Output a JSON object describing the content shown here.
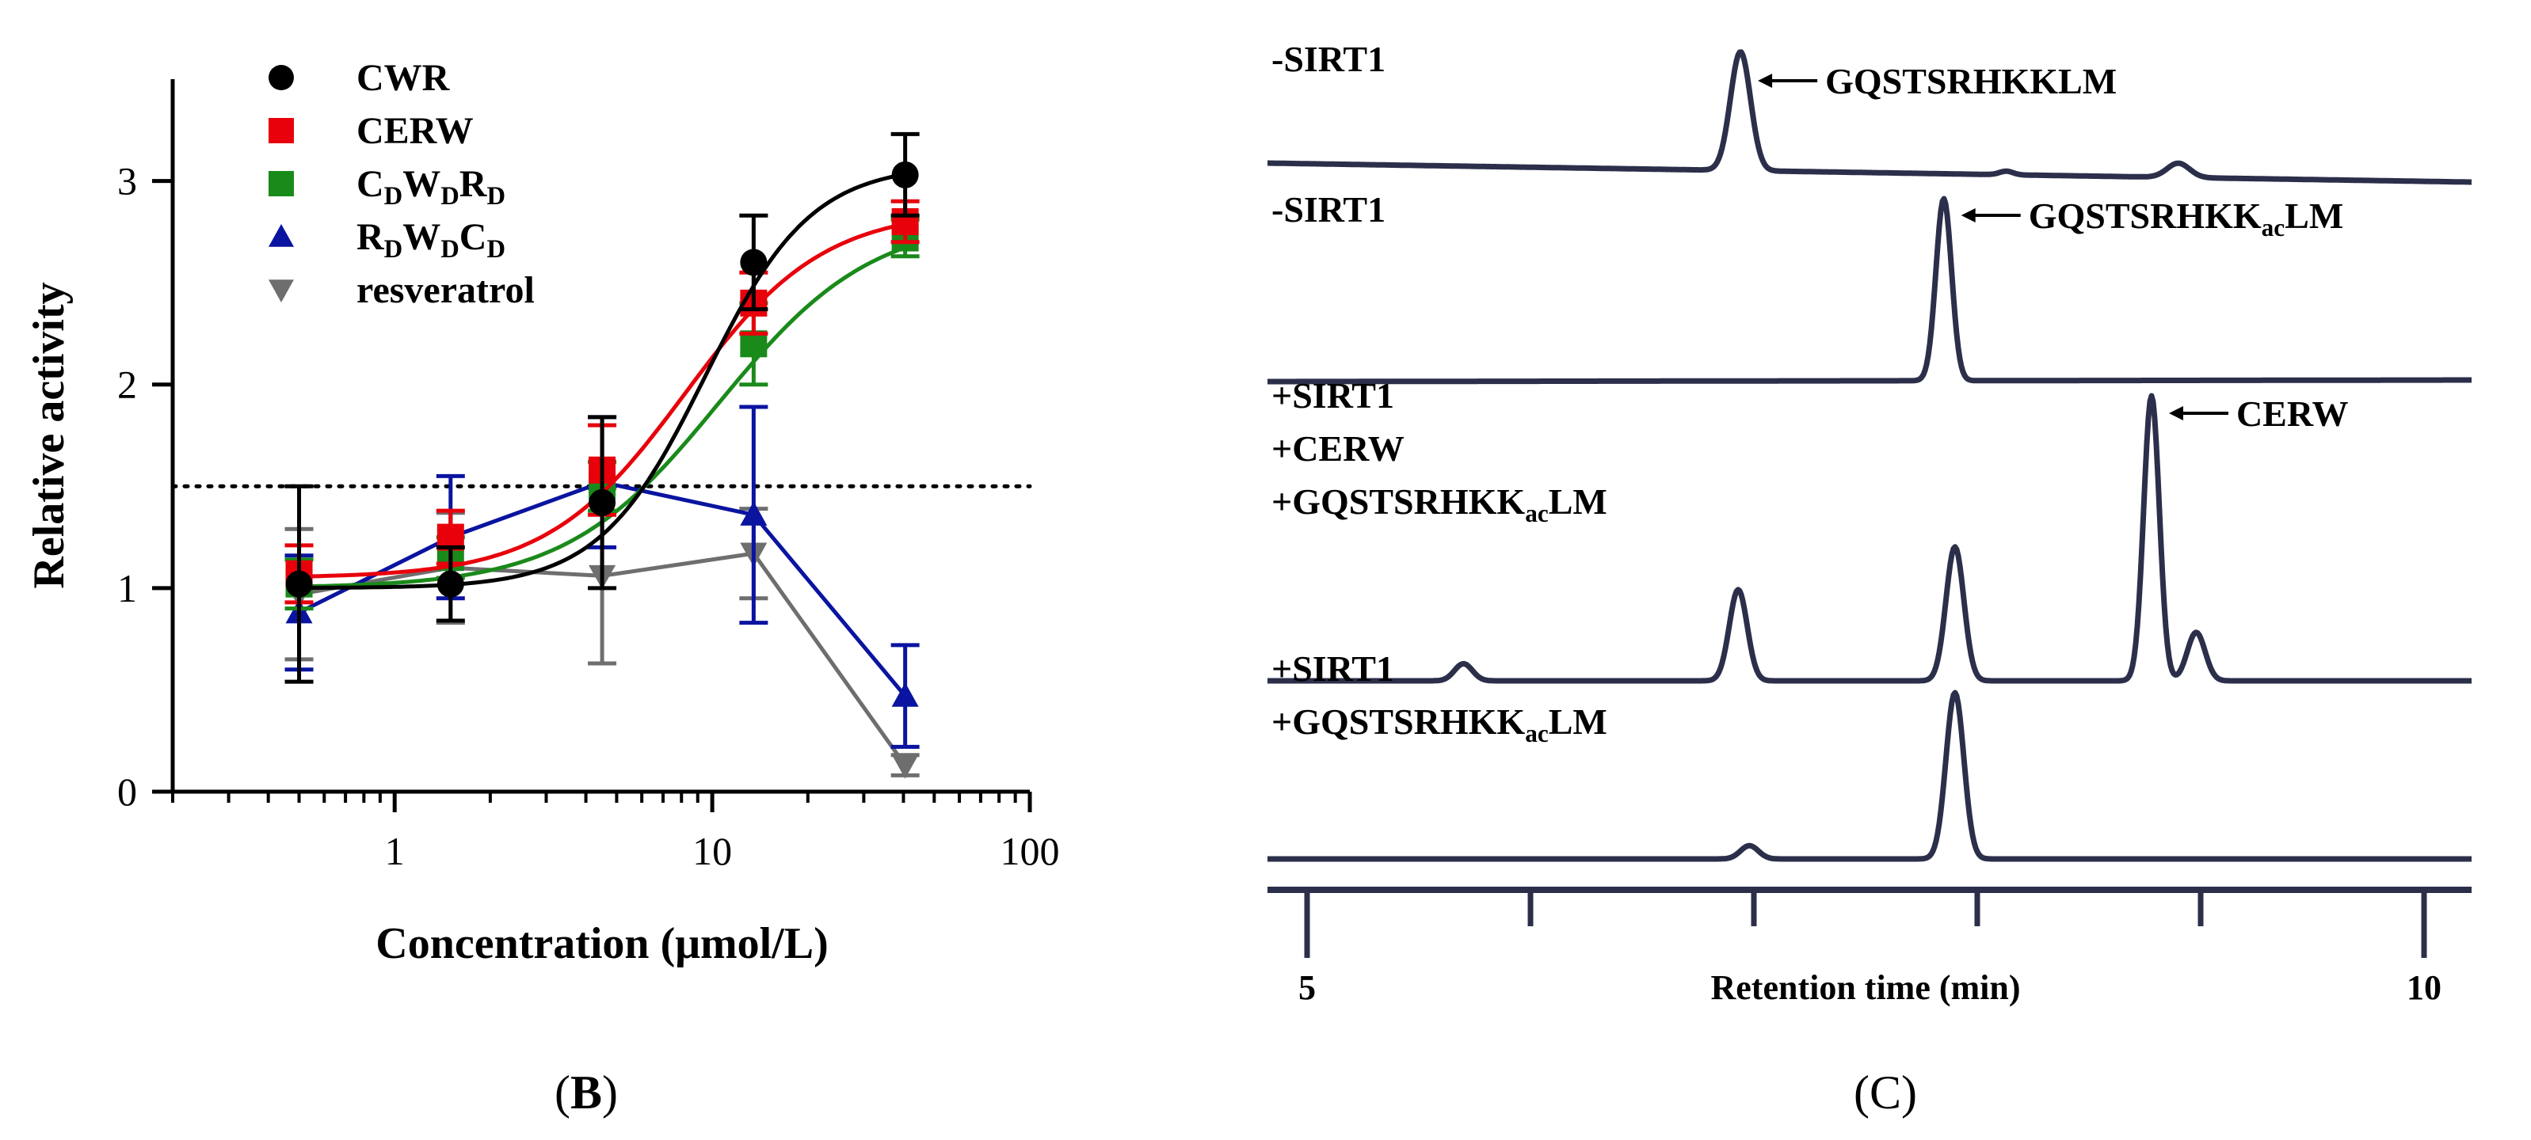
{
  "chart_data": [
    {
      "type": "scatter",
      "panel_label": "(B)",
      "panel_label_parts": [
        "(",
        "B",
        ")"
      ],
      "xlabel": "Concentration  (μmol/L)",
      "ylabel": "Relative activity",
      "xscale": "log",
      "xlim": [
        0.2,
        100
      ],
      "ylim": [
        0,
        3.5
      ],
      "xticks": [
        {
          "value": 1,
          "label": "1"
        },
        {
          "value": 10,
          "label": "10"
        },
        {
          "value": 100,
          "label": "100"
        }
      ],
      "yticks": [
        {
          "value": 0,
          "label": "0"
        },
        {
          "value": 1,
          "label": "1"
        },
        {
          "value": 2,
          "label": "2"
        },
        {
          "value": 3,
          "label": "3"
        }
      ],
      "reference_line": {
        "y": 1.5,
        "style": "dotted"
      },
      "x": [
        0.5,
        1.5,
        4.5,
        13.5,
        40.5
      ],
      "series": [
        {
          "name": "CWR",
          "label_parts": [
            {
              "t": "CWR"
            }
          ],
          "color": "#000000",
          "marker": "circle",
          "values": [
            1.02,
            1.02,
            1.42,
            2.6,
            3.03
          ],
          "err": [
            0.48,
            0.18,
            0.42,
            0.23,
            0.2
          ],
          "fit": {
            "bottom": 1.0,
            "top": 3.08,
            "ec50": 9.5,
            "hill": 2.6
          }
        },
        {
          "name": "CERW",
          "label_parts": [
            {
              "t": "CERW"
            }
          ],
          "color": "#e8000b",
          "marker": "square",
          "values": [
            1.07,
            1.25,
            1.58,
            2.4,
            2.8
          ],
          "err": [
            0.14,
            0.13,
            0.22,
            0.15,
            0.1
          ],
          "fit": {
            "bottom": 1.05,
            "top": 2.86,
            "ec50": 8.2,
            "hill": 2.0
          }
        },
        {
          "name": "CDWDRD",
          "label_parts": [
            {
              "t": "C"
            },
            {
              "t": "D",
              "sub": true
            },
            {
              "t": "W"
            },
            {
              "t": "D",
              "sub": true
            },
            {
              "t": "R"
            },
            {
              "t": "D",
              "sub": true
            }
          ],
          "color": "#1a8a1a",
          "marker": "square",
          "values": [
            1.02,
            1.15,
            1.5,
            2.2,
            2.72
          ],
          "err": [
            0.12,
            0.1,
            0.12,
            0.2,
            0.09
          ],
          "fit": {
            "bottom": 1.0,
            "top": 2.82,
            "ec50": 10.5,
            "hill": 1.8
          }
        },
        {
          "name": "RDWDCD",
          "label_parts": [
            {
              "t": "R"
            },
            {
              "t": "D",
              "sub": true
            },
            {
              "t": "W"
            },
            {
              "t": "D",
              "sub": true
            },
            {
              "t": "C"
            },
            {
              "t": "D",
              "sub": true
            }
          ],
          "color": "#0a14a0",
          "marker": "triangle-up",
          "values": [
            0.88,
            1.25,
            1.52,
            1.36,
            0.47
          ],
          "err": [
            0.28,
            0.3,
            0.32,
            0.53,
            0.25
          ]
        },
        {
          "name": "resveratrol",
          "label_parts": [
            {
              "t": "resveratrol"
            }
          ],
          "color": "#6e6e6e",
          "marker": "triangle-down",
          "values": [
            0.97,
            1.1,
            1.06,
            1.17,
            0.13
          ],
          "err": [
            0.32,
            0.27,
            0.43,
            0.22,
            0.05
          ]
        }
      ]
    },
    {
      "type": "line",
      "subtype": "chromatogram",
      "panel_label": "(C)",
      "panel_label_parts": [
        "(",
        "C",
        ")"
      ],
      "xlabel": "Retention time (min)",
      "xlim": [
        5,
        10
      ],
      "xticks": [
        {
          "value": 5,
          "label": "5"
        },
        {
          "value": 6,
          "label": ""
        },
        {
          "value": 7,
          "label": ""
        },
        {
          "value": 8,
          "label": ""
        },
        {
          "value": 9,
          "label": ""
        },
        {
          "value": 10,
          "label": "10"
        }
      ],
      "traces": [
        {
          "labels": [
            [
              {
                "t": "-SIRT1"
              }
            ]
          ],
          "peaks": [
            {
              "x": 6.94,
              "h": 1.0,
              "w": 0.045
            },
            {
              "x": 8.9,
              "h": 0.12,
              "w": 0.05
            },
            {
              "x": 8.13,
              "h": 0.03,
              "w": 0.03
            }
          ],
          "annotations": [
            {
              "x": 6.94,
              "text": [
                {
                  "t": "GQSTSRHKKLM"
                }
              ]
            }
          ]
        },
        {
          "labels": [
            [
              {
                "t": "-SIRT1"
              }
            ]
          ],
          "peaks": [
            {
              "x": 7.85,
              "h": 1.0,
              "w": 0.035
            }
          ],
          "annotations": [
            {
              "x": 7.85,
              "text": [
                {
                  "t": "GQSTSRHKK"
                },
                {
                  "t": "ac",
                  "sub": true
                },
                {
                  "t": "LM"
                }
              ]
            }
          ]
        },
        {
          "labels": [
            [
              {
                "t": "+SIRT1"
              }
            ],
            [
              {
                "t": "+CERW"
              }
            ],
            [
              {
                "t": "+GQSTSRHKK"
              },
              {
                "t": "ac",
                "sub": true
              },
              {
                "t": "LM"
              }
            ]
          ],
          "peaks": [
            {
              "x": 5.7,
              "h": 0.06,
              "w": 0.04
            },
            {
              "x": 6.93,
              "h": 0.32,
              "w": 0.04
            },
            {
              "x": 7.9,
              "h": 0.47,
              "w": 0.04
            },
            {
              "x": 8.78,
              "h": 1.0,
              "w": 0.035
            },
            {
              "x": 8.98,
              "h": 0.17,
              "w": 0.04
            }
          ],
          "annotations": [
            {
              "x": 8.78,
              "text": [
                {
                  "t": "CERW"
                }
              ]
            }
          ]
        },
        {
          "labels": [
            [
              {
                "t": "+SIRT1"
              }
            ],
            [
              {
                "t": "+GQSTSRHKK"
              },
              {
                "t": "ac",
                "sub": true
              },
              {
                "t": "LM"
              }
            ]
          ],
          "peaks": [
            {
              "x": 6.98,
              "h": 0.08,
              "w": 0.04
            },
            {
              "x": 7.9,
              "h": 1.0,
              "w": 0.04
            }
          ],
          "annotations": []
        }
      ]
    }
  ]
}
